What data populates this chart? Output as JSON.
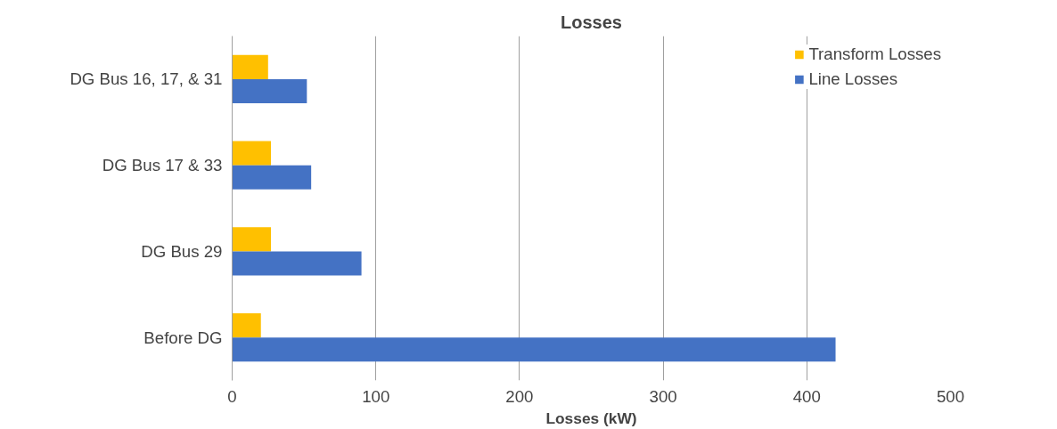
{
  "chart_data": {
    "type": "bar",
    "orientation": "horizontal",
    "title": "Losses",
    "xlabel": "Losses (kW)",
    "categories": [
      "DG Bus 16, 17, & 31",
      "DG Bus 17 & 33",
      "DG Bus 29",
      "Before DG"
    ],
    "series": [
      {
        "name": "Transform Losses",
        "color": "#ffc000",
        "values": [
          25,
          27,
          27,
          20
        ]
      },
      {
        "name": "Line Losses",
        "color": "#4472c4",
        "values": [
          52,
          55,
          90,
          420
        ]
      }
    ],
    "xlim": [
      0,
      500
    ],
    "xticks": [
      0,
      100,
      200,
      300,
      400,
      500
    ],
    "grid": "x",
    "legend": "top right"
  }
}
